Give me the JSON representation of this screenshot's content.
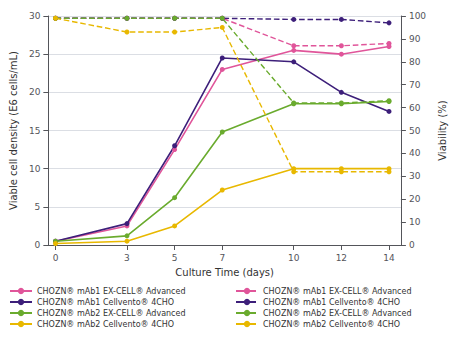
{
  "chart_data": {
    "type": "line",
    "x": [
      0,
      3,
      5,
      7,
      10,
      12,
      14
    ],
    "xlabel": "Culture Time (days)",
    "ylabel": "Viable cell density (E6 cells/mL)",
    "y2label": "Viability (%)",
    "xlim": [
      -0.3,
      14.5
    ],
    "xticks": [
      0,
      3,
      5,
      7,
      10,
      12,
      14
    ],
    "ylim": [
      0,
      30
    ],
    "yticks": [
      0,
      5,
      10,
      15,
      20,
      25,
      30
    ],
    "y2lim": [
      0,
      100
    ],
    "y2ticks": [
      0,
      10,
      20,
      30,
      40,
      50,
      60,
      70,
      80,
      90,
      100
    ],
    "grid": true,
    "legend": "bottom",
    "marker": "circle",
    "series": [
      {
        "name": "CHOZN® mAb1 EX-CELL® Advanced",
        "color": "#e0559a",
        "line_style": "solid",
        "values": [
          0.5,
          2.5,
          12.5,
          23.0,
          25.5,
          25.0,
          26.0
        ]
      },
      {
        "name": "CHOZN® mAb1 Cellvento® 4CHO",
        "color": "#3d1f7a",
        "line_style": "solid",
        "values": [
          0.5,
          2.8,
          13.0,
          24.5,
          24.0,
          20.0,
          17.5
        ]
      },
      {
        "name": "CHOZN® mAb2 EX-CELL® Advanced",
        "color": "#6aab2e",
        "line_style": "solid",
        "values": [
          0.5,
          1.2,
          6.2,
          14.8,
          18.5,
          18.5,
          18.8
        ]
      },
      {
        "name": "CHOZN® mAb2 Cellvento® 4CHO",
        "color": "#e8b800",
        "line_style": "solid",
        "values": [
          0.2,
          0.5,
          2.5,
          7.2,
          10.0,
          10.0,
          10.0
        ]
      },
      {
        "name": "CHOZN® mAb1 EX-CELL® Advanced",
        "color": "#e0559a",
        "line_style": "dashed",
        "axis": "y2",
        "values": [
          99.0,
          99.0,
          99.0,
          99.0,
          87.0,
          87.0,
          88.0
        ]
      },
      {
        "name": "CHOZN® mAb1 Cellvento® 4CHO",
        "color": "#3d1f7a",
        "line_style": "dashed",
        "axis": "y2",
        "values": [
          99.0,
          99.0,
          99.0,
          99.0,
          98.5,
          98.5,
          97.0
        ]
      },
      {
        "name": "CHOZN® mAb2 EX-CELL® Advanced",
        "color": "#6aab2e",
        "line_style": "dashed",
        "axis": "y2",
        "values": [
          99.0,
          99.0,
          99.0,
          99.0,
          62.0,
          62.0,
          63.0
        ]
      },
      {
        "name": "CHOZN® mAb2 Cellvento® 4CHO",
        "color": "#e8b800",
        "line_style": "dashed",
        "axis": "y2",
        "values": [
          99.0,
          93.0,
          93.0,
          95.0,
          32.0,
          32.0,
          32.0
        ]
      }
    ]
  }
}
